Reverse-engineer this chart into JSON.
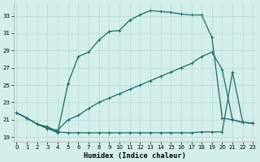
{
  "xlabel": "Humidex (Indice chaleur)",
  "xlim": [
    -0.3,
    23.3
  ],
  "ylim": [
    18.5,
    34.5
  ],
  "xticks": [
    0,
    1,
    2,
    3,
    4,
    5,
    6,
    7,
    8,
    9,
    10,
    11,
    12,
    13,
    14,
    15,
    16,
    17,
    18,
    19,
    20,
    21,
    22,
    23
  ],
  "yticks": [
    19,
    21,
    23,
    25,
    27,
    29,
    31,
    33
  ],
  "bg_color": "#d4eeea",
  "line_color": "#1a6b6b",
  "grid_color": "#b2d9d3",
  "line1_x": [
    0,
    1,
    2,
    3,
    4,
    5,
    6,
    7,
    8,
    9,
    10,
    11,
    12,
    13,
    14,
    15,
    16,
    17,
    18,
    19,
    20,
    21,
    22,
    23
  ],
  "line1_y": [
    21.8,
    21.2,
    20.5,
    20.0,
    19.5,
    25.2,
    28.3,
    28.8,
    30.2,
    31.2,
    31.3,
    32.5,
    33.1,
    33.6,
    33.5,
    33.4,
    33.2,
    33.1,
    33.1,
    30.5,
    21.2,
    21.0,
    20.7,
    20.6
  ],
  "line2_x": [
    0,
    1,
    2,
    3,
    4,
    5,
    6,
    7,
    8,
    9,
    10,
    11,
    12,
    13,
    14,
    15,
    16,
    17,
    18,
    19,
    20,
    21,
    22,
    23
  ],
  "line2_y": [
    21.8,
    21.2,
    20.5,
    20.2,
    19.6,
    19.5,
    19.5,
    19.5,
    19.5,
    19.5,
    19.5,
    19.5,
    19.5,
    19.5,
    19.5,
    19.5,
    19.5,
    19.5,
    19.6,
    19.6,
    19.6,
    26.5,
    20.7,
    20.6
  ],
  "line3_x": [
    0,
    1,
    2,
    3,
    4,
    5,
    6,
    7,
    8,
    9,
    10,
    11,
    12,
    13,
    14,
    15,
    16,
    17,
    18,
    19,
    20,
    21,
    22,
    23
  ],
  "line3_y": [
    21.8,
    21.2,
    20.5,
    20.0,
    19.8,
    21.0,
    21.5,
    22.3,
    23.0,
    23.5,
    24.0,
    24.5,
    25.0,
    25.5,
    26.0,
    26.5,
    27.0,
    27.5,
    28.3,
    28.8,
    26.8,
    21.0,
    20.7,
    20.6
  ],
  "markersize": 2.5,
  "linewidth": 0.9,
  "tick_fontsize": 5.0,
  "xlabel_fontsize": 6.2
}
